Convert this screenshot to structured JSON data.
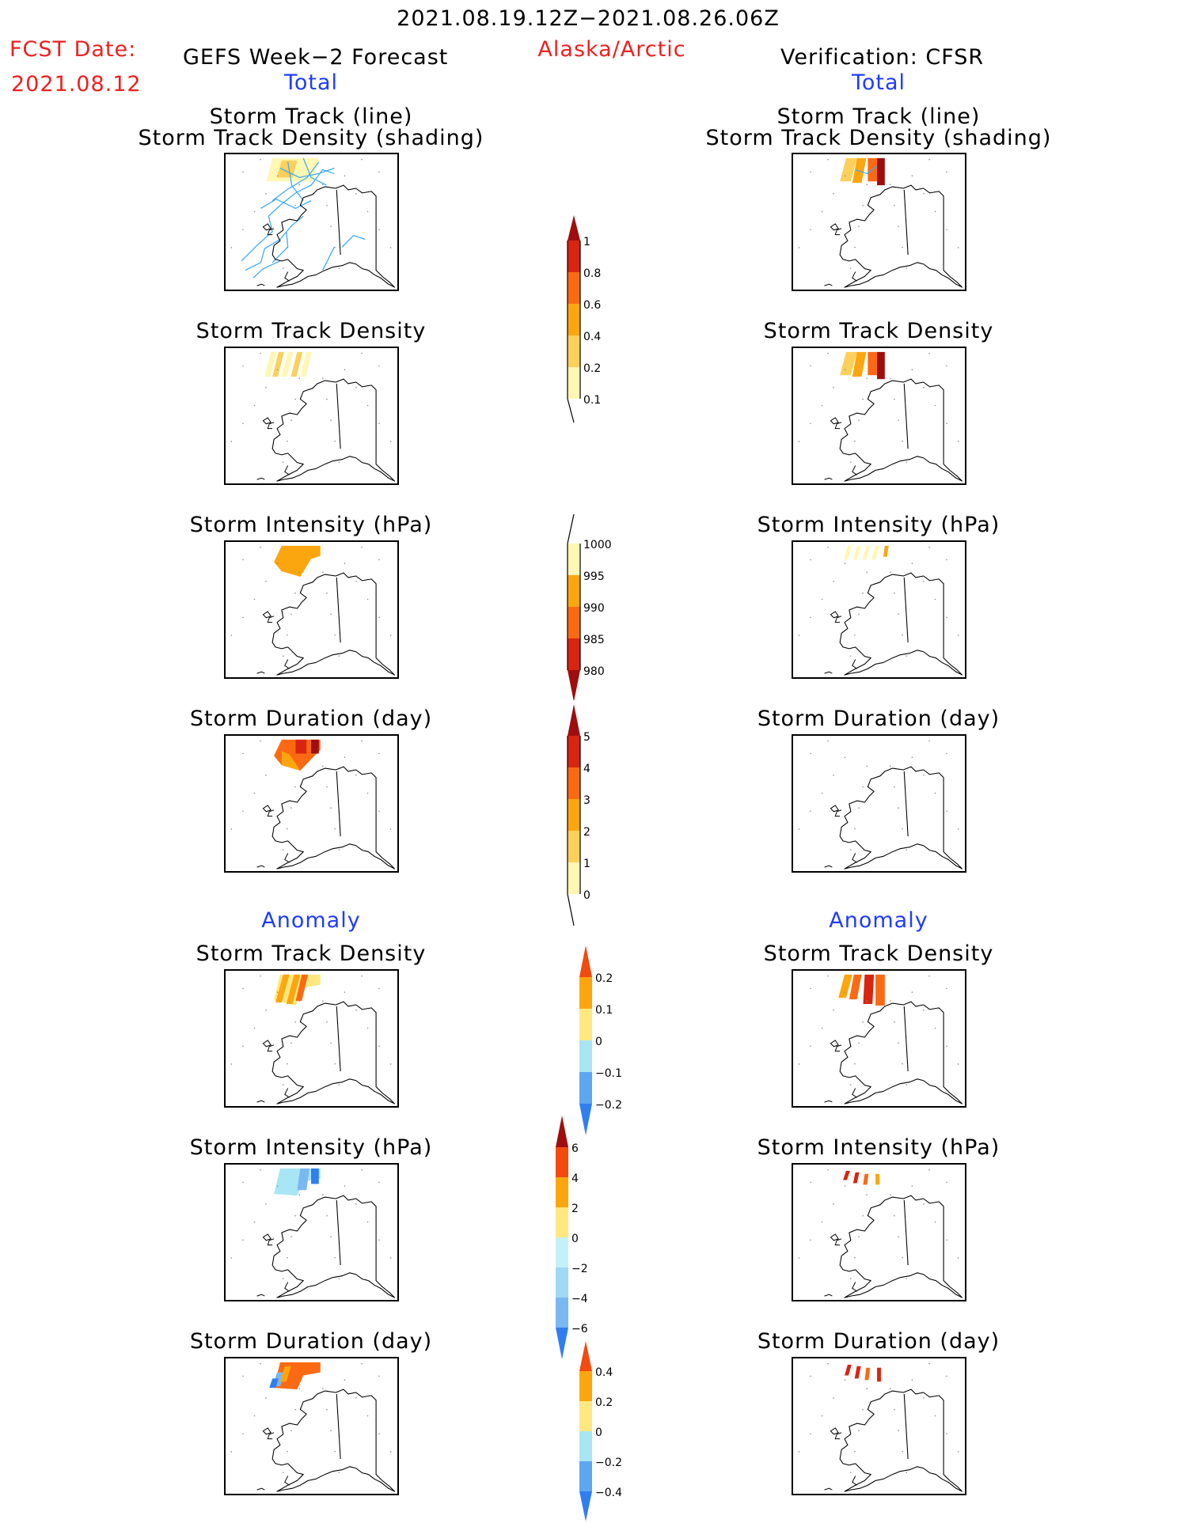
{
  "header": {
    "period": "2021.08.19.12Z−2021.08.26.06Z",
    "fcst_label": "FCST Date:",
    "fcst_date": "2021.08.12",
    "left_title": "GEFS Week−2 Forecast",
    "region": "Alaska/Arctic",
    "right_title": "Verification: CFSR"
  },
  "sections": {
    "total": "Total",
    "anomaly": "Anomaly"
  },
  "panel_titles": {
    "track_line": "Storm Track (line)",
    "track_shading": "Storm Track Density (shading)",
    "density": "Storm Track Density",
    "intensity": "Storm Intensity (hPa)",
    "duration": "Storm Duration (day)"
  },
  "colorbars": [
    {
      "name": "density-total",
      "labels": [
        "1",
        "0.8",
        "0.6",
        "0.4",
        "0.2",
        "0.1"
      ]
    },
    {
      "name": "intensity-total",
      "labels": [
        "1000",
        "995",
        "990",
        "985",
        "980"
      ]
    },
    {
      "name": "duration-total",
      "labels": [
        "5",
        "4",
        "3",
        "2",
        "1",
        "0"
      ]
    },
    {
      "name": "density-anom",
      "labels": [
        "0.2",
        "0.1",
        "0",
        "−0.1",
        "−0.2"
      ]
    },
    {
      "name": "intensity-anom",
      "labels": [
        "6",
        "4",
        "2",
        "0",
        "−2",
        "−4",
        "−6"
      ]
    },
    {
      "name": "duration-anom",
      "labels": [
        "0.4",
        "0.2",
        "0",
        "−0.2",
        "−0.4"
      ]
    }
  ],
  "colors": {
    "pale_yellow": "#fff7b3",
    "light_orange": "#fcd05a",
    "orange": "#fca60f",
    "dark_orange": "#fb6a13",
    "red": "#d92510",
    "dark_red": "#9e0e0e",
    "track_blue": "#3fa9f5",
    "light_blue": "#a8e6f5",
    "mid_blue": "#7ab8f2",
    "blue": "#2f7ff0"
  }
}
